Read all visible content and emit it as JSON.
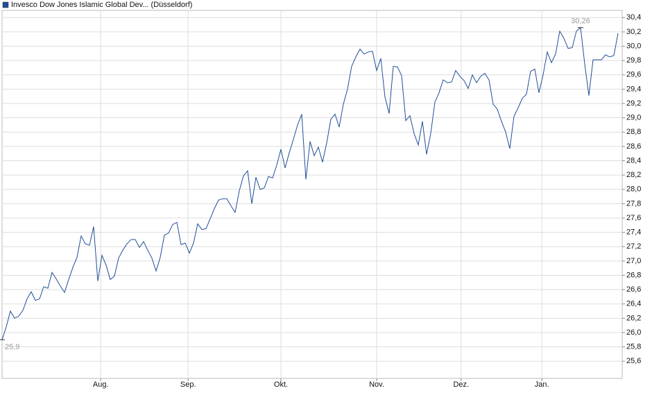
{
  "chart_data": {
    "type": "line",
    "series": [
      {
        "name": "Invesco Dow Jones Islamic Global Dev... (Düsseldorf)",
        "color": "#1f4e99",
        "values": [
          25.9,
          26.08,
          26.3,
          26.2,
          26.23,
          26.31,
          26.47,
          26.57,
          26.45,
          26.47,
          26.64,
          26.62,
          26.84,
          26.75,
          26.65,
          26.56,
          26.74,
          26.91,
          27.05,
          27.35,
          27.24,
          27.22,
          27.48,
          26.72,
          27.08,
          26.94,
          26.74,
          26.79,
          27.04,
          27.15,
          27.24,
          27.3,
          27.3,
          27.19,
          27.27,
          27.15,
          27.04,
          26.86,
          27.05,
          27.36,
          27.39,
          27.51,
          27.54,
          27.23,
          27.25,
          27.11,
          27.25,
          27.52,
          27.44,
          27.45,
          27.59,
          27.73,
          27.85,
          27.87,
          27.87,
          27.77,
          27.68,
          27.98,
          28.19,
          28.26,
          27.8,
          28.17,
          28.0,
          28.02,
          28.18,
          28.16,
          28.34,
          28.56,
          28.3,
          28.51,
          28.7,
          28.9,
          29.05,
          28.14,
          28.67,
          28.47,
          28.59,
          28.38,
          28.65,
          28.98,
          29.05,
          28.87,
          29.19,
          29.4,
          29.72,
          29.85,
          29.96,
          29.89,
          29.92,
          29.93,
          29.66,
          29.83,
          29.29,
          29.06,
          29.72,
          29.71,
          29.59,
          28.96,
          29.03,
          28.78,
          28.62,
          28.95,
          28.49,
          28.78,
          29.22,
          29.35,
          29.53,
          29.49,
          29.5,
          29.66,
          29.58,
          29.52,
          29.41,
          29.6,
          29.49,
          29.58,
          29.62,
          29.53,
          29.19,
          29.12,
          28.95,
          28.8,
          28.57,
          29.02,
          29.14,
          29.27,
          29.33,
          29.65,
          29.68,
          29.35,
          29.6,
          29.92,
          29.77,
          29.89,
          30.21,
          30.11,
          29.97,
          29.98,
          30.21,
          30.26,
          29.75,
          29.31,
          29.81,
          29.81,
          29.81,
          29.88,
          29.85,
          29.87,
          30.18
        ]
      }
    ],
    "x": [
      0,
      1,
      2,
      3,
      4,
      5,
      6,
      7,
      8,
      9,
      10,
      11,
      12,
      13,
      14,
      15,
      16,
      17,
      18,
      19,
      20,
      21,
      22,
      23,
      24,
      25,
      26,
      27,
      28,
      29,
      30,
      31,
      32,
      33,
      34,
      35,
      36,
      37,
      38,
      39,
      40,
      41,
      42,
      43,
      44,
      45,
      46,
      47,
      48,
      49,
      50,
      51,
      52,
      53,
      54,
      55,
      56,
      57,
      58,
      59,
      60,
      61,
      62,
      63,
      64,
      65,
      66,
      67,
      68,
      69,
      70,
      71,
      72,
      73,
      74,
      75,
      76,
      77,
      78,
      79,
      80,
      81,
      82,
      83,
      84,
      85,
      86,
      87,
      88,
      89,
      90,
      91,
      92,
      93,
      94,
      95,
      96,
      97,
      98,
      99,
      100,
      101,
      102,
      103,
      104,
      105,
      106,
      107,
      108,
      109,
      110,
      111,
      112,
      113,
      114,
      115,
      116,
      117,
      118,
      119,
      120,
      121,
      122,
      123,
      124,
      125,
      126,
      127,
      128,
      129,
      130,
      131,
      132,
      133,
      134,
      135,
      136,
      137,
      138,
      139,
      140,
      141,
      142,
      143,
      144,
      145,
      146,
      147,
      148
    ],
    "xlim": [
      0,
      149
    ],
    "xticks": [
      {
        "value": 23.7,
        "label": "Aug."
      },
      {
        "value": 44.7,
        "label": "Sep."
      },
      {
        "value": 67,
        "label": "Okt."
      },
      {
        "value": 90,
        "label": "Nov."
      },
      {
        "value": 110.3,
        "label": "Dez."
      },
      {
        "value": 129.7,
        "label": "Jan."
      }
    ],
    "ylim": [
      25.36,
      30.5
    ],
    "yticks": [
      {
        "value": 25.6,
        "label": "25,6"
      },
      {
        "value": 25.8,
        "label": "25,8"
      },
      {
        "value": 26.0,
        "label": "26,0"
      },
      {
        "value": 26.2,
        "label": "26,2"
      },
      {
        "value": 26.4,
        "label": "26,4"
      },
      {
        "value": 26.6,
        "label": "26,6"
      },
      {
        "value": 26.8,
        "label": "26,8"
      },
      {
        "value": 27.0,
        "label": "27,0"
      },
      {
        "value": 27.2,
        "label": "27,2"
      },
      {
        "value": 27.4,
        "label": "27,4"
      },
      {
        "value": 27.6,
        "label": "27,6"
      },
      {
        "value": 27.8,
        "label": "27,8"
      },
      {
        "value": 28.0,
        "label": "28,0"
      },
      {
        "value": 28.2,
        "label": "28,2"
      },
      {
        "value": 28.4,
        "label": "28,4"
      },
      {
        "value": 28.6,
        "label": "28,6"
      },
      {
        "value": 28.8,
        "label": "28,8"
      },
      {
        "value": 29.0,
        "label": "29,0"
      },
      {
        "value": 29.2,
        "label": "29,2"
      },
      {
        "value": 29.4,
        "label": "29,4"
      },
      {
        "value": 29.6,
        "label": "29,6"
      },
      {
        "value": 29.8,
        "label": "29,8"
      },
      {
        "value": 30.0,
        "label": "30,0"
      },
      {
        "value": 30.2,
        "label": "30,2"
      },
      {
        "value": 30.4,
        "label": "30,4"
      }
    ],
    "annotations": [
      {
        "x": 0,
        "value": 25.9,
        "label": "25,9"
      },
      {
        "x": 139,
        "value": 30.26,
        "label": "30,26"
      }
    ],
    "grid": true,
    "legend": "top-left"
  }
}
